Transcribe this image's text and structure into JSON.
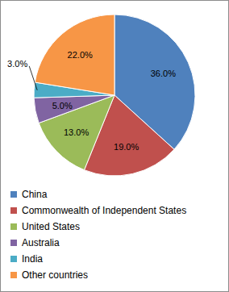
{
  "chart_data": {
    "type": "pie",
    "categories": [
      "China",
      "Commonwealth of Independent States",
      "United States",
      "Australia",
      "India",
      "Other countries"
    ],
    "values": [
      36,
      19,
      13,
      5,
      3,
      22
    ],
    "value_labels": [
      "36.0%",
      "19.0%",
      "13.0%",
      "5.0%",
      "3.0%",
      "22.0%"
    ],
    "colors": [
      "#4f81bd",
      "#c0504d",
      "#9bbb59",
      "#8064a2",
      "#4bacc6",
      "#f79646"
    ],
    "data_labels": true,
    "legend": "bottom"
  }
}
